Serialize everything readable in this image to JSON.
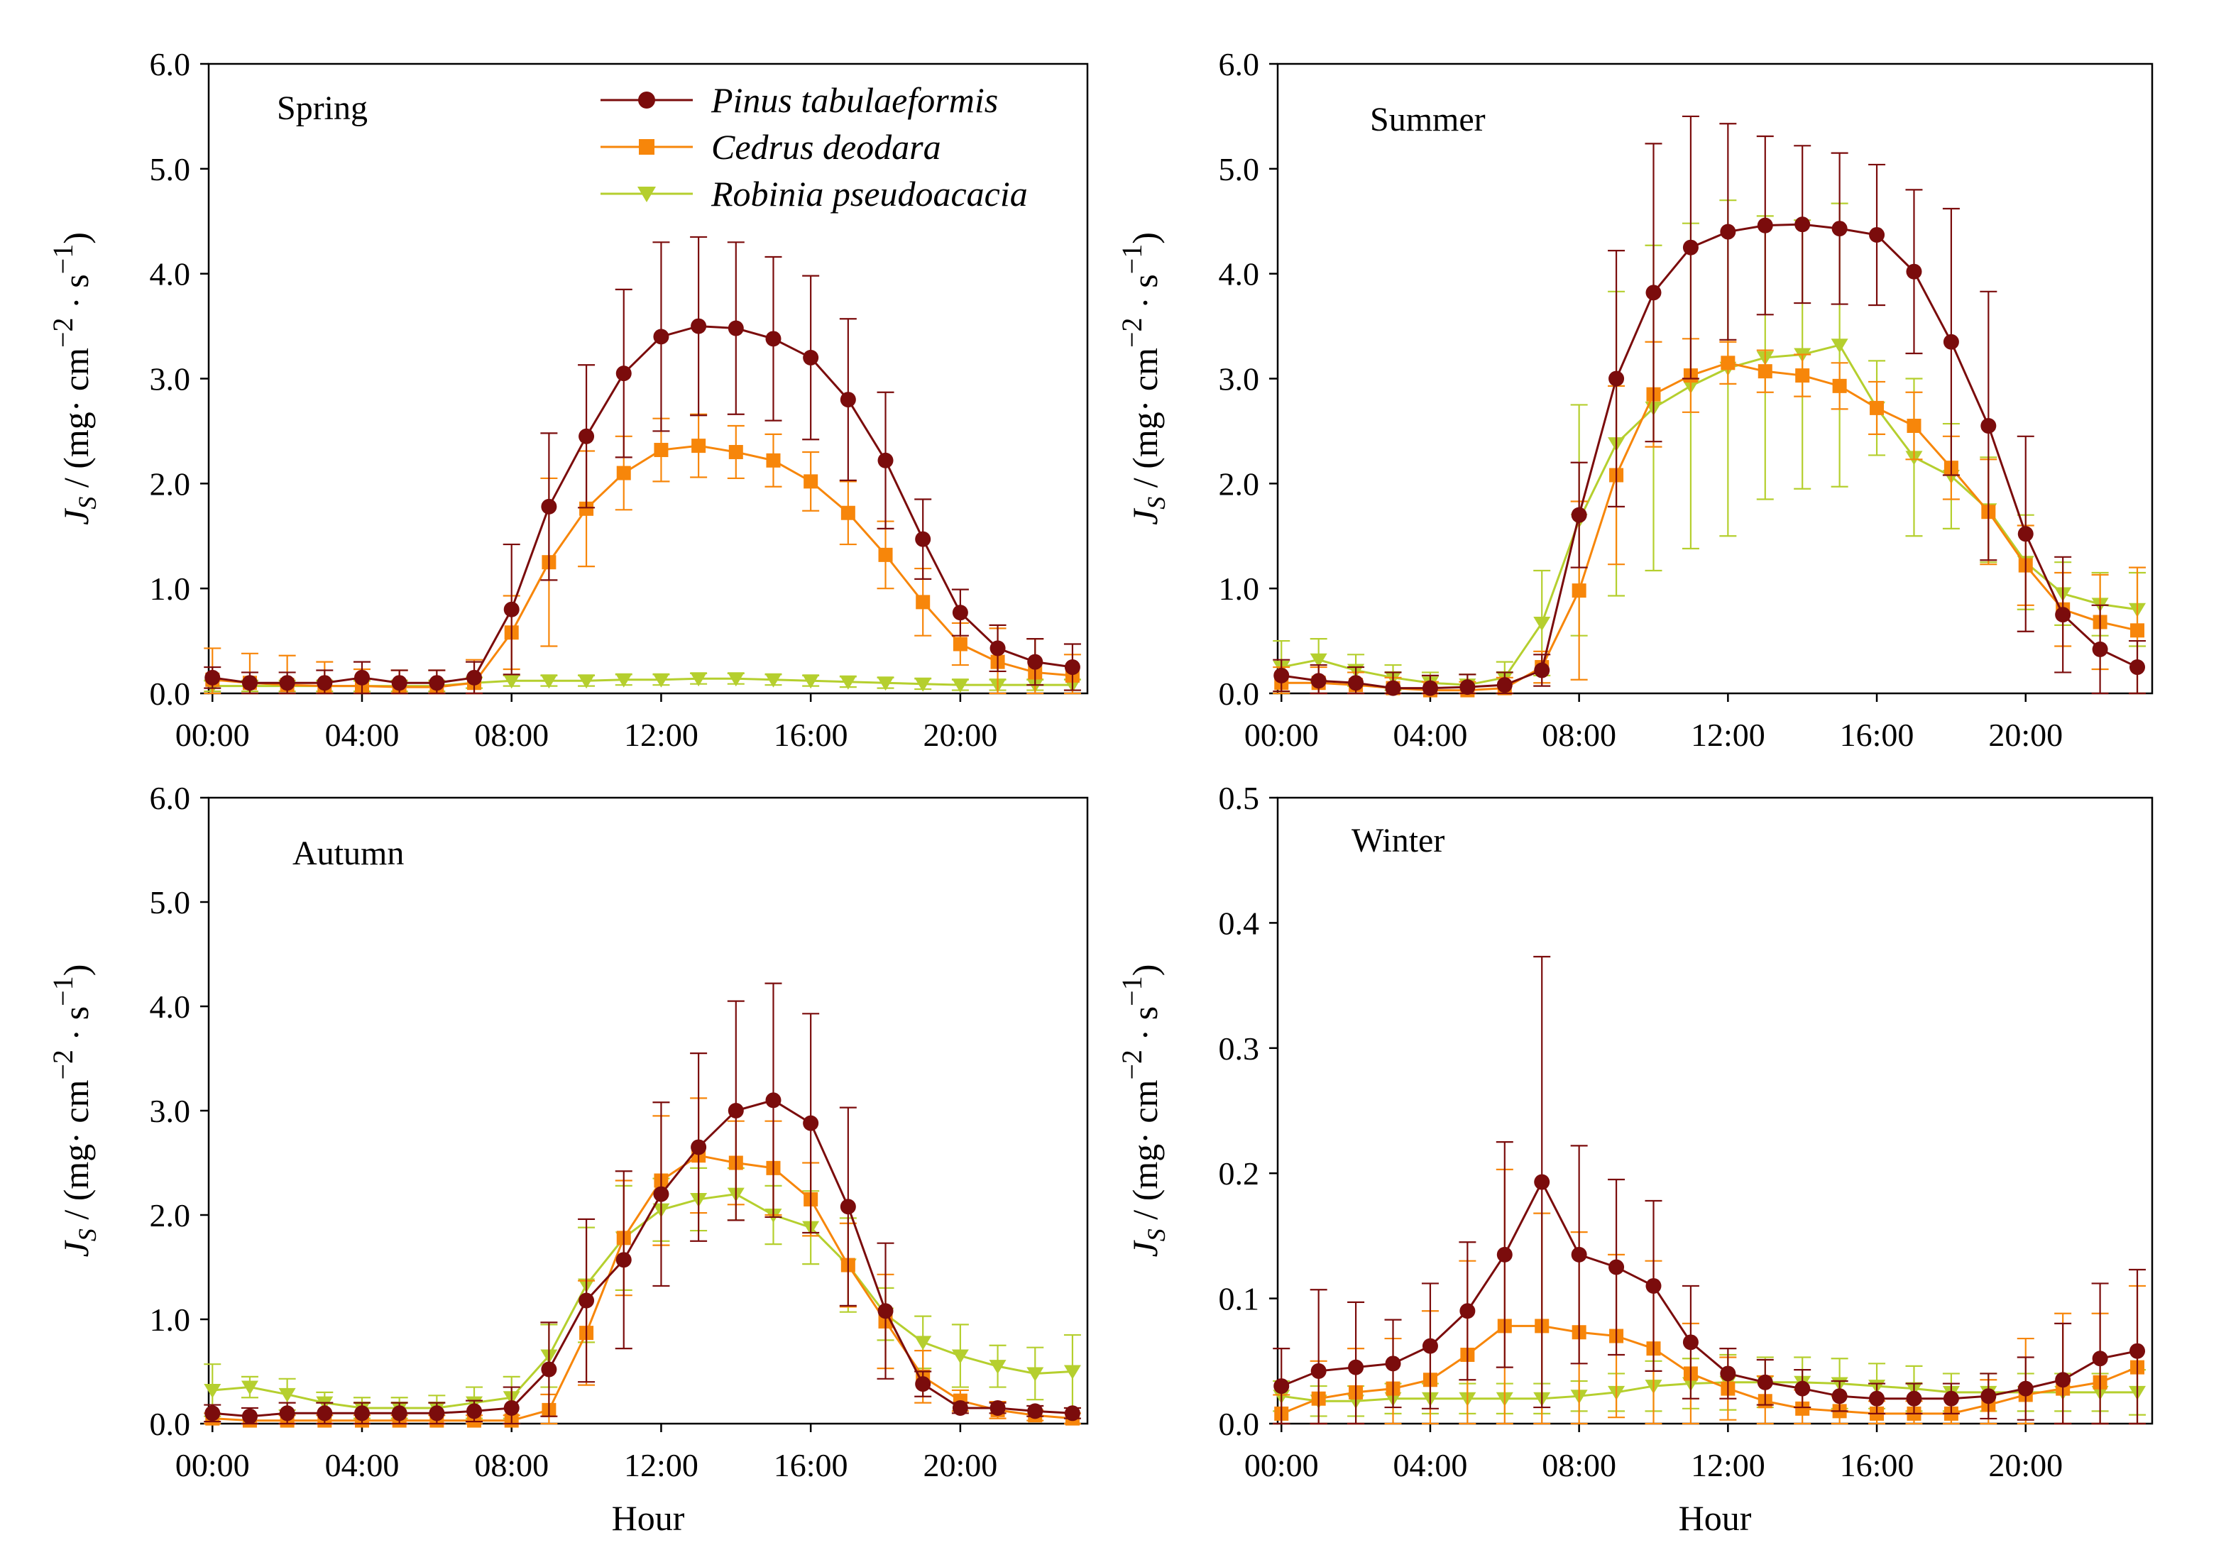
{
  "figure": {
    "colors": {
      "pinus": "#7b0c0c",
      "cedrus": "#f7860a",
      "robinia": "#b5cf2e"
    }
  },
  "legend": {
    "pinus": "Pinus tabulaeformis",
    "cedrus": "Cedrus deodara",
    "robinia": "Robinia pseudoacacia"
  },
  "axis_text": {
    "y_prefix": "J",
    "y_sub": "S",
    "y_unit_open": " / (mg· cm",
    "y_exp1": "−2",
    "y_unit_mid": " · s",
    "y_exp2": "−1",
    "y_unit_close": ")",
    "xlabel": "Hour"
  },
  "chart_data": [
    {
      "type": "line",
      "title": "Spring",
      "xlabel": "",
      "ylabel": "J_S / (mg· cm−2 · s−1)",
      "x": [
        0,
        1,
        2,
        3,
        4,
        5,
        6,
        7,
        8,
        9,
        10,
        11,
        12,
        13,
        14,
        15,
        16,
        17,
        18,
        19,
        20,
        21,
        22,
        23
      ],
      "xticks": [
        "00:00",
        "04:00",
        "08:00",
        "12:00",
        "16:00",
        "20:00"
      ],
      "yticks": [
        "0.0",
        "1.0",
        "2.0",
        "3.0",
        "4.0",
        "5.0",
        "6.0"
      ],
      "ylim": [
        0,
        6
      ],
      "series": [
        {
          "name": "Pinus tabulaeformis",
          "key": "pinus",
          "values": [
            0.15,
            0.1,
            0.1,
            0.1,
            0.15,
            0.1,
            0.1,
            0.15,
            0.8,
            1.78,
            2.45,
            3.05,
            3.4,
            3.5,
            3.48,
            3.38,
            3.2,
            2.8,
            2.22,
            1.47,
            0.77,
            0.43,
            0.3,
            0.25
          ],
          "errors": [
            0.1,
            0.1,
            0.1,
            0.12,
            0.15,
            0.12,
            0.12,
            0.15,
            0.62,
            0.7,
            0.68,
            0.8,
            0.9,
            0.85,
            0.82,
            0.78,
            0.78,
            0.77,
            0.65,
            0.38,
            0.22,
            0.22,
            0.22,
            0.22
          ]
        },
        {
          "name": "Cedrus deodara",
          "key": "cedrus",
          "values": [
            0.13,
            0.1,
            0.08,
            0.07,
            0.07,
            0.06,
            0.06,
            0.1,
            0.58,
            1.25,
            1.76,
            2.1,
            2.32,
            2.36,
            2.3,
            2.22,
            2.02,
            1.72,
            1.32,
            0.87,
            0.47,
            0.3,
            0.2,
            0.17
          ],
          "errors": [
            0.3,
            0.28,
            0.28,
            0.23,
            0.16,
            0.16,
            0.16,
            0.22,
            0.35,
            0.8,
            0.55,
            0.35,
            0.3,
            0.3,
            0.25,
            0.25,
            0.28,
            0.3,
            0.32,
            0.32,
            0.2,
            0.32,
            0.32,
            0.2
          ]
        },
        {
          "name": "Robinia pseudoacacia",
          "key": "robinia",
          "values": [
            0.07,
            0.07,
            0.07,
            0.07,
            0.07,
            0.07,
            0.07,
            0.1,
            0.12,
            0.12,
            0.12,
            0.13,
            0.13,
            0.14,
            0.14,
            0.13,
            0.12,
            0.11,
            0.1,
            0.09,
            0.08,
            0.08,
            0.08,
            0.08
          ],
          "errors": [
            0.05,
            0.05,
            0.05,
            0.05,
            0.05,
            0.05,
            0.05,
            0.05,
            0.05,
            0.05,
            0.05,
            0.05,
            0.05,
            0.05,
            0.05,
            0.05,
            0.05,
            0.05,
            0.05,
            0.05,
            0.05,
            0.05,
            0.05,
            0.05
          ]
        }
      ]
    },
    {
      "type": "line",
      "title": "Summer",
      "xlabel": "",
      "ylabel": "J_S / (mg· cm−2 · s−1)",
      "x": [
        0,
        1,
        2,
        3,
        4,
        5,
        6,
        7,
        8,
        9,
        10,
        11,
        12,
        13,
        14,
        15,
        16,
        17,
        18,
        19,
        20,
        21,
        22,
        23
      ],
      "xticks": [
        "00:00",
        "04:00",
        "08:00",
        "12:00",
        "16:00",
        "20:00"
      ],
      "yticks": [
        "0.0",
        "1.0",
        "2.0",
        "3.0",
        "4.0",
        "5.0",
        "6.0"
      ],
      "ylim": [
        0,
        6
      ],
      "series": [
        {
          "name": "Pinus tabulaeformis",
          "key": "pinus",
          "values": [
            0.17,
            0.12,
            0.1,
            0.05,
            0.05,
            0.06,
            0.08,
            0.22,
            1.7,
            3.0,
            3.82,
            4.25,
            4.4,
            4.46,
            4.47,
            4.43,
            4.37,
            4.02,
            3.35,
            2.55,
            1.52,
            0.75,
            0.42,
            0.25
          ],
          "errors": [
            0.15,
            0.15,
            0.15,
            0.15,
            0.12,
            0.12,
            0.12,
            0.15,
            0.5,
            1.22,
            1.42,
            1.25,
            1.03,
            0.85,
            0.75,
            0.72,
            0.67,
            0.78,
            1.27,
            1.28,
            0.93,
            0.55,
            0.42,
            0.25
          ]
        },
        {
          "name": "Cedrus deodara",
          "key": "cedrus",
          "values": [
            0.1,
            0.1,
            0.08,
            0.05,
            0.03,
            0.03,
            0.05,
            0.25,
            0.98,
            2.08,
            2.85,
            3.03,
            3.15,
            3.07,
            3.03,
            2.93,
            2.72,
            2.55,
            2.15,
            1.73,
            1.22,
            0.8,
            0.68,
            0.6
          ],
          "errors": [
            0.15,
            0.15,
            0.12,
            0.1,
            0.08,
            0.08,
            0.1,
            0.15,
            0.85,
            0.85,
            0.5,
            0.35,
            0.2,
            0.2,
            0.2,
            0.22,
            0.25,
            0.32,
            0.3,
            0.5,
            0.38,
            0.35,
            0.45,
            0.6
          ]
        },
        {
          "name": "Robinia pseudoacacia",
          "key": "robinia",
          "values": [
            0.25,
            0.32,
            0.22,
            0.15,
            0.1,
            0.08,
            0.15,
            0.67,
            1.65,
            2.38,
            2.72,
            2.93,
            3.1,
            3.2,
            3.23,
            3.32,
            2.72,
            2.25,
            2.07,
            1.75,
            1.25,
            0.95,
            0.85,
            0.8
          ],
          "errors": [
            0.25,
            0.2,
            0.15,
            0.12,
            0.1,
            0.1,
            0.15,
            0.5,
            1.1,
            1.45,
            1.55,
            1.55,
            1.6,
            1.35,
            1.28,
            1.35,
            0.45,
            0.75,
            0.5,
            0.5,
            0.45,
            0.3,
            0.3,
            0.35
          ]
        }
      ]
    },
    {
      "type": "line",
      "title": "Autumn",
      "xlabel": "Hour",
      "ylabel": "J_S / (mg· cm−2 · s−1)",
      "x": [
        0,
        1,
        2,
        3,
        4,
        5,
        6,
        7,
        8,
        9,
        10,
        11,
        12,
        13,
        14,
        15,
        16,
        17,
        18,
        19,
        20,
        21,
        22,
        23
      ],
      "xticks": [
        "00:00",
        "04:00",
        "08:00",
        "12:00",
        "16:00",
        "20:00"
      ],
      "yticks": [
        "0.0",
        "1.0",
        "2.0",
        "3.0",
        "4.0",
        "5.0",
        "6.0"
      ],
      "ylim": [
        0,
        6
      ],
      "series": [
        {
          "name": "Pinus tabulaeformis",
          "key": "pinus",
          "values": [
            0.1,
            0.07,
            0.1,
            0.1,
            0.1,
            0.1,
            0.1,
            0.12,
            0.15,
            0.52,
            1.18,
            1.57,
            2.2,
            2.65,
            3.0,
            3.1,
            2.88,
            2.08,
            1.08,
            0.38,
            0.15,
            0.15,
            0.12,
            0.1
          ],
          "errors": [
            0.08,
            0.08,
            0.1,
            0.1,
            0.1,
            0.1,
            0.1,
            0.1,
            0.2,
            0.45,
            0.78,
            0.85,
            0.88,
            0.9,
            1.05,
            1.12,
            1.05,
            0.95,
            0.65,
            0.12,
            0.05,
            0.05,
            0.05,
            0.05
          ]
        },
        {
          "name": "Cedrus deodara",
          "key": "cedrus",
          "values": [
            0.05,
            0.03,
            0.03,
            0.03,
            0.03,
            0.03,
            0.03,
            0.03,
            0.03,
            0.13,
            0.87,
            1.78,
            2.33,
            2.57,
            2.5,
            2.45,
            2.15,
            1.52,
            0.98,
            0.45,
            0.22,
            0.13,
            0.08,
            0.05
          ],
          "errors": [
            0.05,
            0.05,
            0.05,
            0.05,
            0.05,
            0.05,
            0.05,
            0.05,
            0.05,
            0.15,
            0.5,
            0.55,
            0.62,
            0.55,
            0.4,
            0.45,
            0.35,
            0.4,
            0.45,
            0.25,
            0.1,
            0.08,
            0.05,
            0.05
          ]
        },
        {
          "name": "Robinia pseudoacacia",
          "key": "robinia",
          "values": [
            0.32,
            0.35,
            0.28,
            0.2,
            0.15,
            0.15,
            0.15,
            0.2,
            0.25,
            0.65,
            1.33,
            1.78,
            2.05,
            2.15,
            2.2,
            2.0,
            1.88,
            1.52,
            1.05,
            0.78,
            0.65,
            0.55,
            0.48,
            0.5
          ],
          "errors": [
            0.25,
            0.1,
            0.15,
            0.1,
            0.1,
            0.1,
            0.12,
            0.15,
            0.2,
            0.3,
            0.55,
            0.5,
            0.3,
            0.3,
            0.25,
            0.28,
            0.35,
            0.45,
            0.25,
            0.25,
            0.3,
            0.2,
            0.25,
            0.35
          ]
        }
      ]
    },
    {
      "type": "line",
      "title": "Winter",
      "xlabel": "Hour",
      "ylabel": "J_S / (mg· cm−2 · s−1)",
      "x": [
        0,
        1,
        2,
        3,
        4,
        5,
        6,
        7,
        8,
        9,
        10,
        11,
        12,
        13,
        14,
        15,
        16,
        17,
        18,
        19,
        20,
        21,
        22,
        23
      ],
      "xticks": [
        "00:00",
        "04:00",
        "08:00",
        "12:00",
        "16:00",
        "20:00"
      ],
      "yticks": [
        "0.0",
        "0.1",
        "0.2",
        "0.3",
        "0.4",
        "0.5"
      ],
      "ylim": [
        0,
        0.5
      ],
      "series": [
        {
          "name": "Pinus tabulaeformis",
          "key": "pinus",
          "values": [
            0.03,
            0.042,
            0.045,
            0.048,
            0.062,
            0.09,
            0.135,
            0.193,
            0.135,
            0.125,
            0.11,
            0.065,
            0.04,
            0.033,
            0.028,
            0.022,
            0.02,
            0.02,
            0.02,
            0.022,
            0.028,
            0.035,
            0.052,
            0.058
          ],
          "errors": [
            0.03,
            0.065,
            0.052,
            0.035,
            0.05,
            0.055,
            0.09,
            0.18,
            0.087,
            0.07,
            0.068,
            0.045,
            0.02,
            0.018,
            0.015,
            0.012,
            0.012,
            0.012,
            0.012,
            0.018,
            0.025,
            0.045,
            0.06,
            0.065
          ]
        },
        {
          "name": "Cedrus deodara",
          "key": "cedrus",
          "values": [
            0.008,
            0.02,
            0.025,
            0.028,
            0.035,
            0.055,
            0.078,
            0.078,
            0.073,
            0.07,
            0.06,
            0.04,
            0.028,
            0.018,
            0.012,
            0.01,
            0.008,
            0.008,
            0.008,
            0.015,
            0.023,
            0.028,
            0.033,
            0.045
          ],
          "errors": [
            0.015,
            0.03,
            0.035,
            0.04,
            0.055,
            0.075,
            0.125,
            0.09,
            0.08,
            0.065,
            0.07,
            0.04,
            0.025,
            0.02,
            0.015,
            0.012,
            0.01,
            0.01,
            0.012,
            0.02,
            0.045,
            0.06,
            0.055,
            0.065
          ]
        },
        {
          "name": "Robinia pseudoacacia",
          "key": "robinia",
          "values": [
            0.022,
            0.018,
            0.018,
            0.02,
            0.02,
            0.02,
            0.02,
            0.02,
            0.022,
            0.025,
            0.03,
            0.032,
            0.033,
            0.033,
            0.033,
            0.032,
            0.03,
            0.028,
            0.025,
            0.025,
            0.025,
            0.025,
            0.025,
            0.025
          ],
          "errors": [
            0.012,
            0.012,
            0.012,
            0.012,
            0.012,
            0.012,
            0.012,
            0.012,
            0.012,
            0.015,
            0.02,
            0.02,
            0.022,
            0.02,
            0.02,
            0.02,
            0.018,
            0.018,
            0.015,
            0.015,
            0.015,
            0.015,
            0.015,
            0.018
          ]
        }
      ]
    }
  ]
}
